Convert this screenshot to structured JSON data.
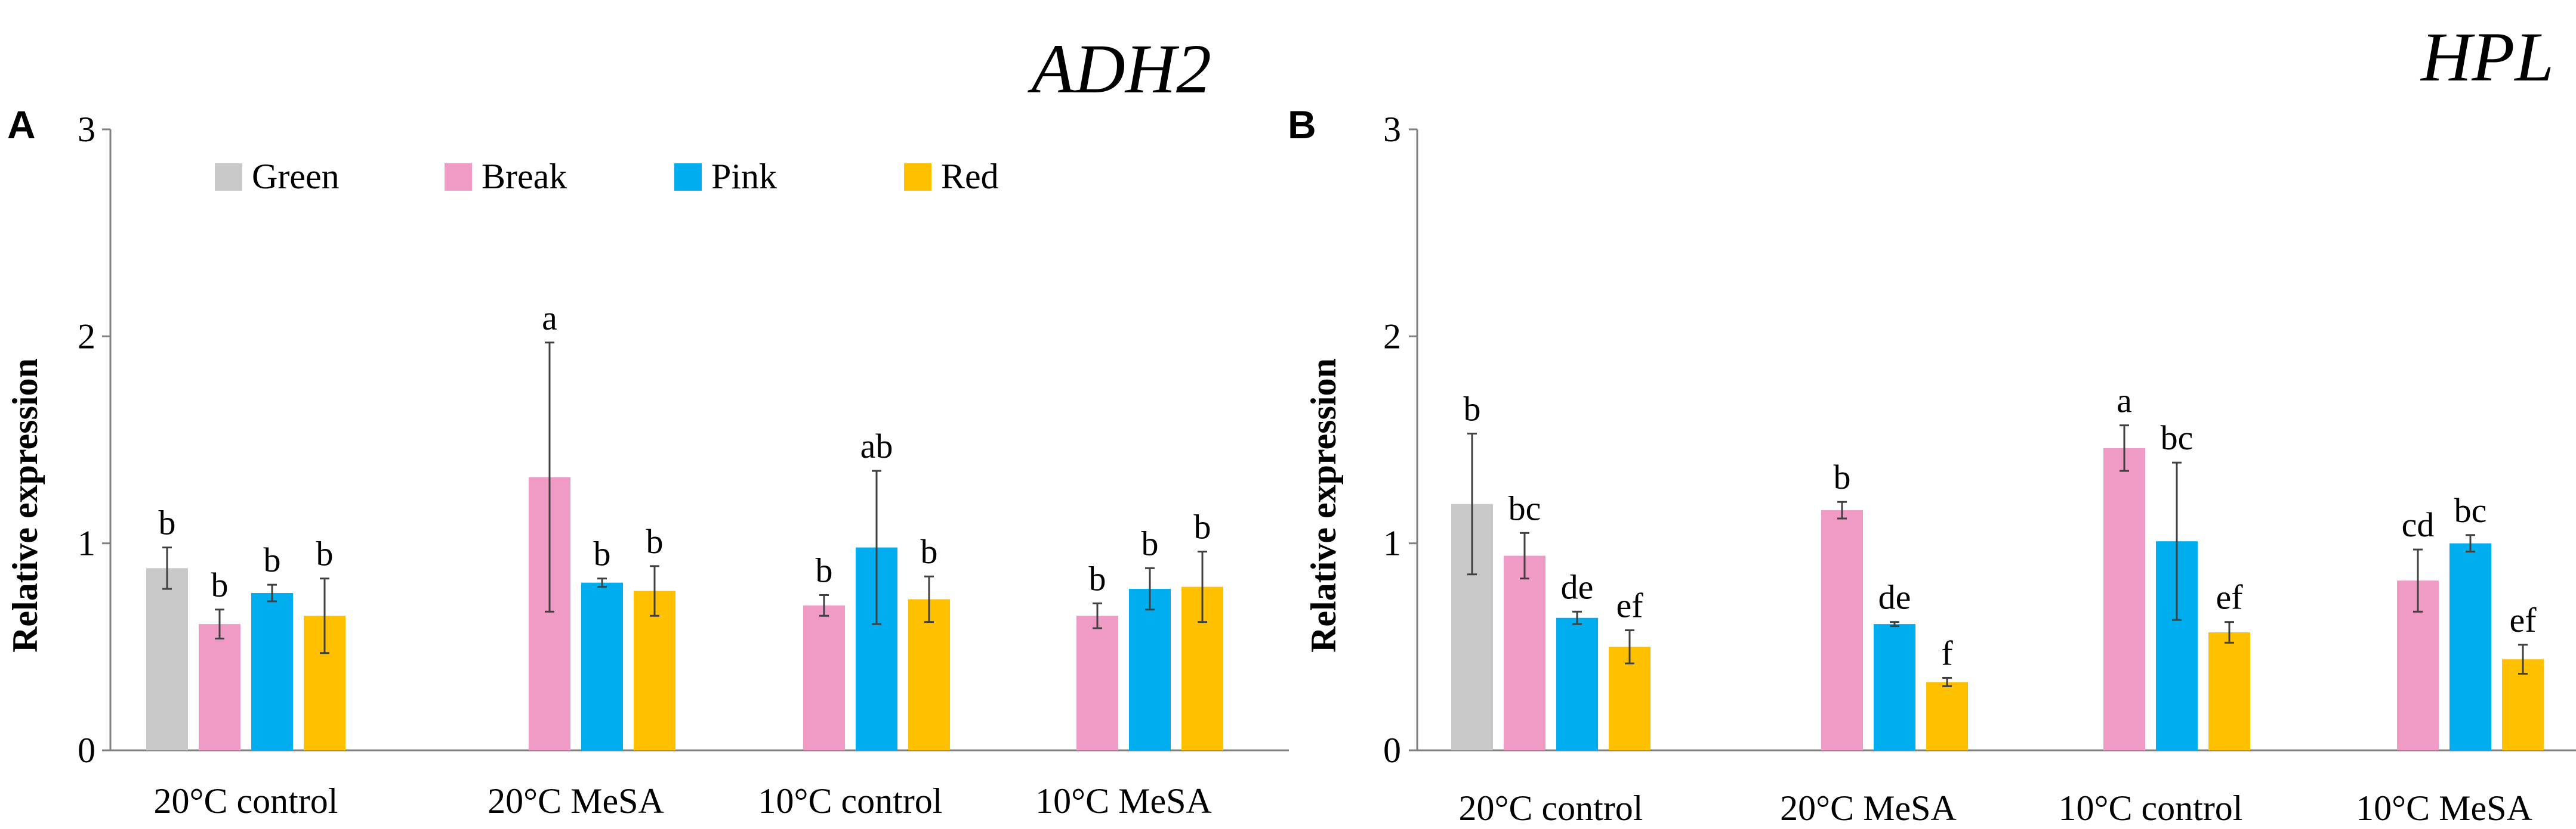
{
  "chart_data": [
    {
      "type": "bar",
      "panel": "A",
      "title": "ADH2",
      "ylabel": "Relative expression",
      "xlabel": "",
      "ylim": [
        0,
        3
      ],
      "yticks": [
        "0",
        "1",
        "2",
        "3"
      ],
      "categories": [
        "20°C control",
        "20°C MeSA",
        "10°C control",
        "10°C MeSA"
      ],
      "legend": {
        "position": "top",
        "entries": [
          "Green",
          "Break",
          "Pink",
          "Red"
        ]
      },
      "series": [
        {
          "name": "Green",
          "color": "#c8c8c8",
          "values": [
            0.88,
            null,
            null,
            null
          ],
          "errors": [
            0.1,
            null,
            null,
            null
          ],
          "labels": [
            "b",
            null,
            null,
            null
          ]
        },
        {
          "name": "Break",
          "color": "#f09ac6",
          "values": [
            0.61,
            1.32,
            0.7,
            0.65
          ],
          "errors": [
            0.07,
            0.65,
            0.05,
            0.06
          ],
          "labels": [
            "b",
            "a",
            "b",
            "b"
          ]
        },
        {
          "name": "Pink",
          "color": "#00aeef",
          "values": [
            0.76,
            0.81,
            0.98,
            0.78
          ],
          "errors": [
            0.04,
            0.02,
            0.37,
            0.1
          ],
          "labels": [
            "b",
            "b",
            "ab",
            "b"
          ]
        },
        {
          "name": "Red",
          "color": "#ffc000",
          "values": [
            0.65,
            0.77,
            0.73,
            0.79
          ],
          "errors": [
            0.18,
            0.12,
            0.11,
            0.17
          ],
          "labels": [
            "b",
            "b",
            "b",
            "b"
          ]
        }
      ]
    },
    {
      "type": "bar",
      "panel": "B",
      "title": "HPL",
      "ylabel": "Relative expression",
      "xlabel": "",
      "ylim": [
        0,
        3
      ],
      "yticks": [
        "0",
        "1",
        "2",
        "3"
      ],
      "categories": [
        "20°C control",
        "20°C MeSA",
        "10°C control",
        "10°C MeSA"
      ],
      "legend": {
        "position": "none",
        "entries": []
      },
      "series": [
        {
          "name": "Green",
          "color": "#c8c8c8",
          "values": [
            1.19,
            null,
            null,
            null
          ],
          "errors": [
            0.34,
            null,
            null,
            null
          ],
          "labels": [
            "b",
            null,
            null,
            null
          ]
        },
        {
          "name": "Break",
          "color": "#f09ac6",
          "values": [
            0.94,
            1.16,
            1.46,
            0.82
          ],
          "errors": [
            0.11,
            0.04,
            0.11,
            0.15
          ],
          "labels": [
            "bc",
            "b",
            "a",
            "cd"
          ]
        },
        {
          "name": "Pink",
          "color": "#00aeef",
          "values": [
            0.64,
            0.61,
            1.01,
            1.0
          ],
          "errors": [
            0.03,
            0.01,
            0.38,
            0.04
          ],
          "labels": [
            "de",
            "de",
            "bc",
            "bc"
          ]
        },
        {
          "name": "Red",
          "color": "#ffc000",
          "values": [
            0.5,
            0.33,
            0.57,
            0.44
          ],
          "errors": [
            0.08,
            0.02,
            0.05,
            0.07
          ],
          "labels": [
            "ef",
            "f",
            "ef",
            "ef"
          ]
        }
      ]
    }
  ]
}
